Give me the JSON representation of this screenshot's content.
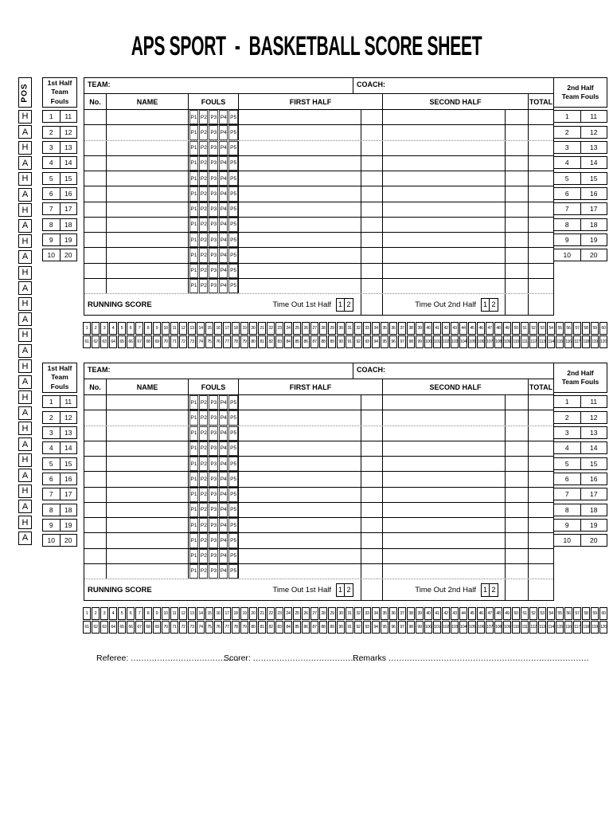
{
  "title": "APS SPORT  -  BASKETBALL SCORE SHEET",
  "colors": {
    "line": "#000000",
    "text": "#000000",
    "background": "#ffffff"
  },
  "pos": {
    "header": "POS",
    "cells": [
      "H",
      "A",
      "H",
      "A",
      "H",
      "A",
      "H",
      "A",
      "H",
      "A",
      "H",
      "A",
      "H",
      "A",
      "H",
      "A",
      "H",
      "A",
      "H",
      "A",
      "H",
      "A",
      "H",
      "A",
      "H",
      "A",
      "H",
      "A"
    ]
  },
  "team_fouls": {
    "first_half_header": [
      "1st Half",
      "Team Fouls"
    ],
    "second_half_header": [
      "2nd Half",
      "Team Fouls"
    ],
    "rows": [
      [
        "1",
        "11"
      ],
      [
        "2",
        "12"
      ],
      [
        "3",
        "13"
      ],
      [
        "4",
        "14"
      ],
      [
        "5",
        "15"
      ],
      [
        "6",
        "16"
      ],
      [
        "7",
        "17"
      ],
      [
        "8",
        "18"
      ],
      [
        "9",
        "19"
      ],
      [
        "10",
        "20"
      ]
    ]
  },
  "roster_table": {
    "team_label": "TEAM:",
    "coach_label": "COACH:",
    "columns": {
      "no": "No.",
      "name": "NAME",
      "fouls": "FOULS",
      "first_half": "FIRST HALF",
      "second_half": "SECOND HALF",
      "total": "TOTAL"
    },
    "foul_periods": [
      "P1",
      "P2",
      "P3",
      "P4",
      "P5"
    ],
    "row_count": 12
  },
  "running_score": {
    "label": "RUNNING SCORE",
    "timeout_first": "Time Out 1st Half",
    "timeout_second": "Time Out 2nd Half",
    "timeout_cells": [
      "1",
      "2"
    ]
  },
  "score_strip": {
    "row1": [
      1,
      2,
      3,
      4,
      5,
      6,
      7,
      8,
      9,
      10,
      11,
      12,
      13,
      14,
      15,
      16,
      17,
      18,
      19,
      20,
      21,
      22,
      23,
      24,
      25,
      26,
      27,
      28,
      29,
      30,
      31,
      32,
      33,
      34,
      35,
      36,
      37,
      38,
      39,
      40,
      41,
      42,
      43,
      44,
      45,
      46,
      47,
      48,
      49,
      50,
      51,
      52,
      53,
      54,
      55,
      56,
      57,
      58,
      59,
      60
    ],
    "row2": [
      61,
      62,
      63,
      64,
      65,
      66,
      67,
      68,
      69,
      70,
      71,
      72,
      73,
      74,
      75,
      76,
      77,
      78,
      79,
      80,
      81,
      82,
      83,
      84,
      85,
      86,
      87,
      88,
      89,
      90,
      91,
      92,
      93,
      94,
      95,
      96,
      97,
      98,
      99,
      100,
      101,
      102,
      103,
      104,
      105,
      106,
      107,
      108,
      109,
      110,
      111,
      112,
      113,
      114,
      115,
      116,
      117,
      118,
      119,
      120
    ]
  },
  "footer": {
    "referee_label": "Referee:",
    "referee_dots": ".........................................",
    "scorer_label": "Scorer:",
    "scorer_dots": ".........................................",
    "remarks_label": "Remarks",
    "remarks_dots": "............................................................................"
  }
}
